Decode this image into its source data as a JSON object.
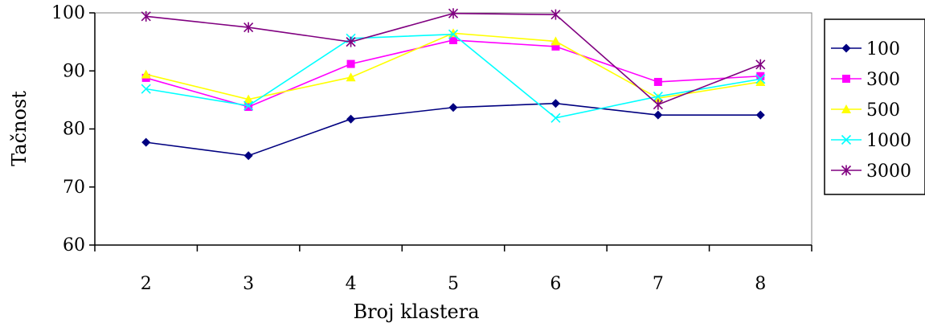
{
  "chart_data": {
    "type": "line",
    "title": "",
    "xlabel": "Broj klastera",
    "ylabel": "Tačnost",
    "categories": [
      "2",
      "3",
      "4",
      "5",
      "6",
      "7",
      "8"
    ],
    "ylim": [
      60,
      100
    ],
    "yticks": [
      60,
      70,
      80,
      90,
      100
    ],
    "grid": false,
    "legend_position": "right",
    "series": [
      {
        "name": "100",
        "color": "#000080",
        "marker": "diamond",
        "values": [
          77.7,
          75.4,
          81.7,
          83.7,
          84.4,
          82.4,
          82.4
        ]
      },
      {
        "name": "300",
        "color": "#FF00FF",
        "marker": "square",
        "values": [
          88.8,
          83.8,
          91.2,
          95.3,
          94.2,
          88.1,
          89.1
        ]
      },
      {
        "name": "500",
        "color": "#FFFF00",
        "marker": "triangle",
        "values": [
          89.4,
          85.1,
          88.9,
          96.5,
          95.1,
          85.3,
          88.1
        ]
      },
      {
        "name": "1000",
        "color": "#00FFFF",
        "marker": "x",
        "values": [
          86.9,
          84.0,
          95.6,
          96.3,
          81.9,
          85.6,
          88.6
        ]
      },
      {
        "name": "3000",
        "color": "#800080",
        "marker": "star",
        "values": [
          99.4,
          97.5,
          95.0,
          99.9,
          99.7,
          84.2,
          91.1
        ]
      }
    ]
  }
}
